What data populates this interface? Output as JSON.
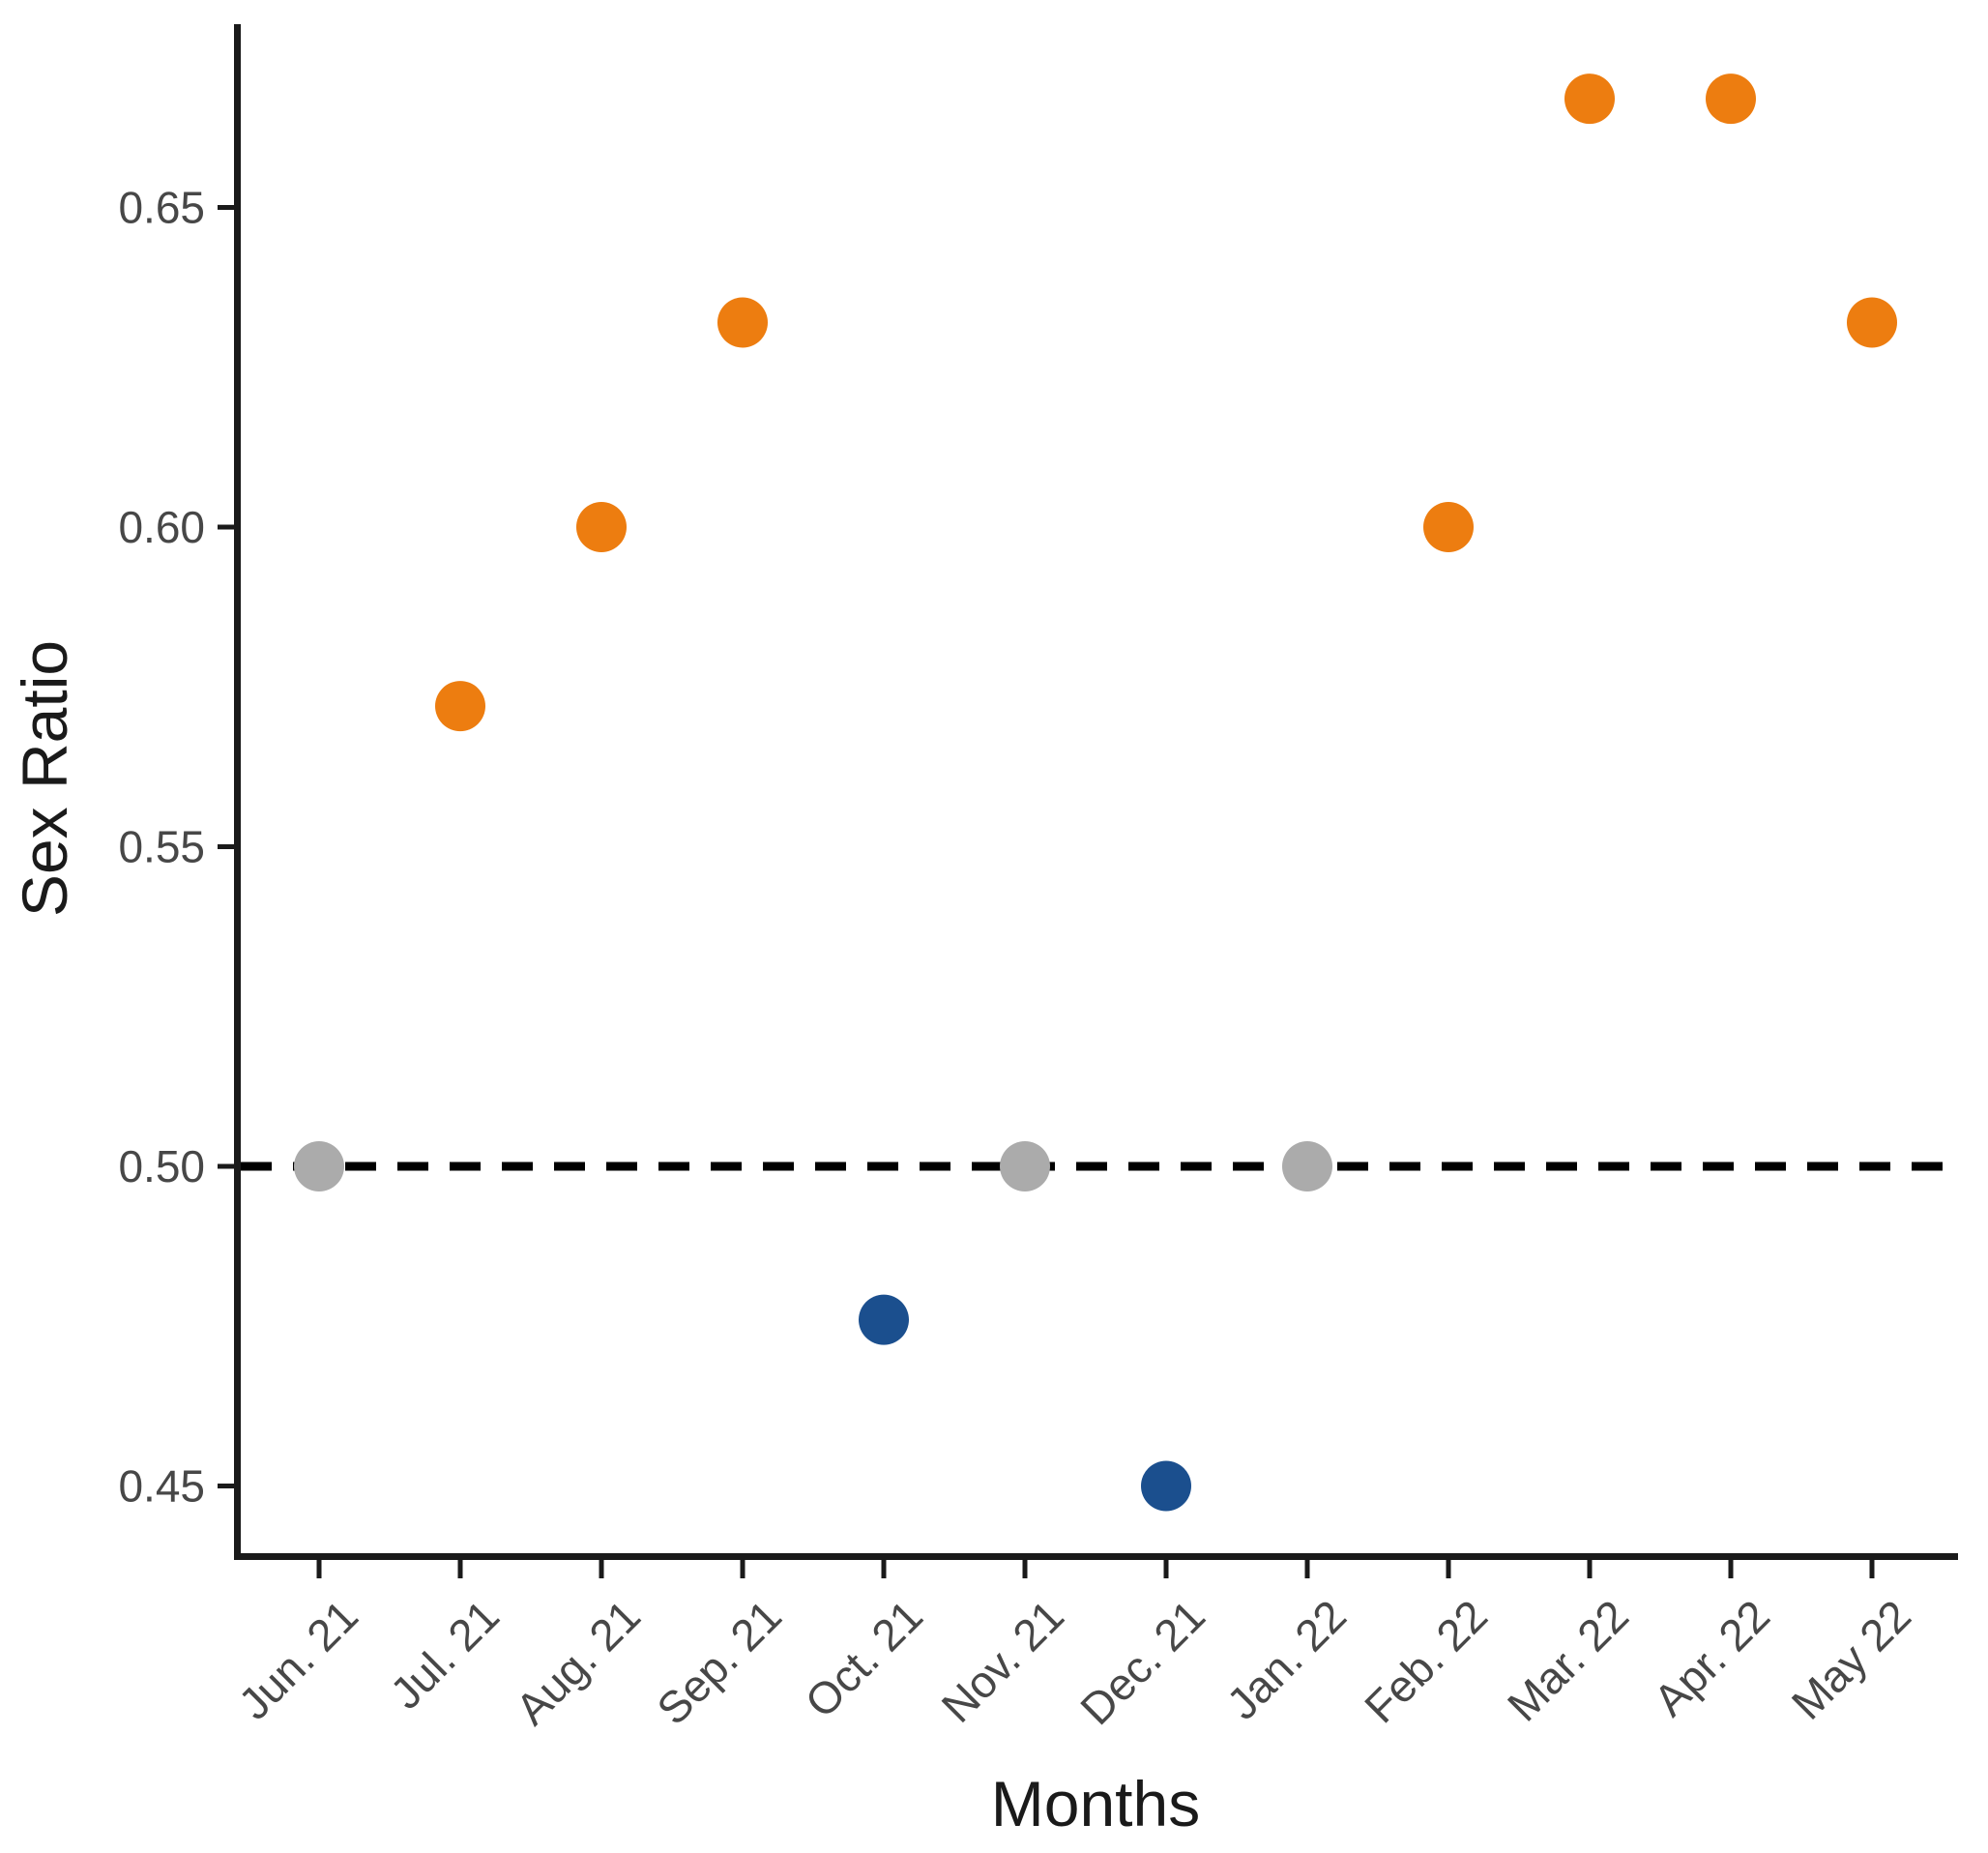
{
  "chart_data": {
    "type": "scatter",
    "title": "",
    "xlabel": "Months",
    "ylabel": "Sex Ratio",
    "categories": [
      "Jun. 21",
      "Jul. 21",
      "Aug. 21",
      "Sep. 21",
      "Oct. 21",
      "Nov. 21",
      "Dec. 21",
      "Jan. 22",
      "Feb. 22",
      "Mar. 22",
      "Apr. 22",
      "May 22"
    ],
    "points": [
      {
        "month": "Jun. 21",
        "value": 0.5,
        "color_key": "gray"
      },
      {
        "month": "Jul. 21",
        "value": 0.572,
        "color_key": "orange"
      },
      {
        "month": "Aug. 21",
        "value": 0.6,
        "color_key": "orange"
      },
      {
        "month": "Sep. 21",
        "value": 0.632,
        "color_key": "orange"
      },
      {
        "month": "Oct. 21",
        "value": 0.476,
        "color_key": "blue"
      },
      {
        "month": "Nov. 21",
        "value": 0.5,
        "color_key": "gray"
      },
      {
        "month": "Dec. 21",
        "value": 0.45,
        "color_key": "blue"
      },
      {
        "month": "Jan. 22",
        "value": 0.5,
        "color_key": "gray"
      },
      {
        "month": "Feb. 22",
        "value": 0.6,
        "color_key": "orange"
      },
      {
        "month": "Mar. 22",
        "value": 0.667,
        "color_key": "orange"
      },
      {
        "month": "Apr. 22",
        "value": 0.667,
        "color_key": "orange"
      },
      {
        "month": "May 22",
        "value": 0.632,
        "color_key": "orange"
      }
    ],
    "y_ticks": [
      0.45,
      0.5,
      0.55,
      0.6,
      0.65
    ],
    "y_tick_labels": [
      "0.45",
      "0.50",
      "0.55",
      "0.60",
      "0.65"
    ],
    "ylim": [
      0.438,
      0.679
    ],
    "reference_line": {
      "y": 0.5,
      "style": "dashed",
      "color": "#000000"
    },
    "grid": false,
    "legend": "none",
    "colors": {
      "orange": "#ED7D10",
      "blue": "#1B4F8E",
      "gray": "#ABABAB",
      "axis": "#1A1A1A",
      "tick_label": "#474747"
    }
  }
}
